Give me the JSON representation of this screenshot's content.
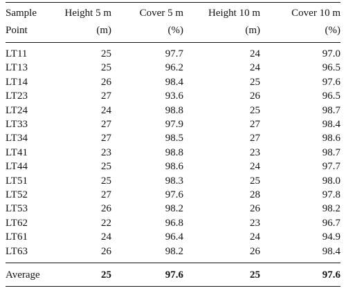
{
  "table": {
    "headers": [
      [
        "Sample",
        "Point"
      ],
      [
        "Height 5 m",
        "(m)"
      ],
      [
        "Cover 5 m",
        "(%)"
      ],
      [
        "Height 10 m",
        "(m)"
      ],
      [
        "Cover 10 m",
        "(%)"
      ]
    ],
    "rows": [
      [
        "LT11",
        "25",
        "97.7",
        "24",
        "97.0"
      ],
      [
        "LT13",
        "25",
        "96.2",
        "24",
        "96.5"
      ],
      [
        "LT14",
        "26",
        "98.4",
        "25",
        "97.6"
      ],
      [
        "LT23",
        "27",
        "93.6",
        "26",
        "96.5"
      ],
      [
        "LT24",
        "24",
        "98.8",
        "25",
        "98.7"
      ],
      [
        "LT33",
        "27",
        "97.9",
        "27",
        "98.4"
      ],
      [
        "LT34",
        "27",
        "98.5",
        "27",
        "98.6"
      ],
      [
        "LT41",
        "23",
        "98.8",
        "23",
        "98.7"
      ],
      [
        "LT44",
        "25",
        "98.6",
        "24",
        "97.7"
      ],
      [
        "LT51",
        "25",
        "98.3",
        "25",
        "98.0"
      ],
      [
        "LT52",
        "27",
        "97.6",
        "28",
        "97.8"
      ],
      [
        "LT53",
        "26",
        "98.2",
        "26",
        "98.2"
      ],
      [
        "LT62",
        "22",
        "96.8",
        "23",
        "96.7"
      ],
      [
        "LT61",
        "24",
        "96.4",
        "24",
        "94.9"
      ],
      [
        "LT63",
        "26",
        "98.2",
        "26",
        "98.4"
      ]
    ],
    "average": [
      "Average",
      "25",
      "97.6",
      "25",
      "97.6"
    ]
  }
}
